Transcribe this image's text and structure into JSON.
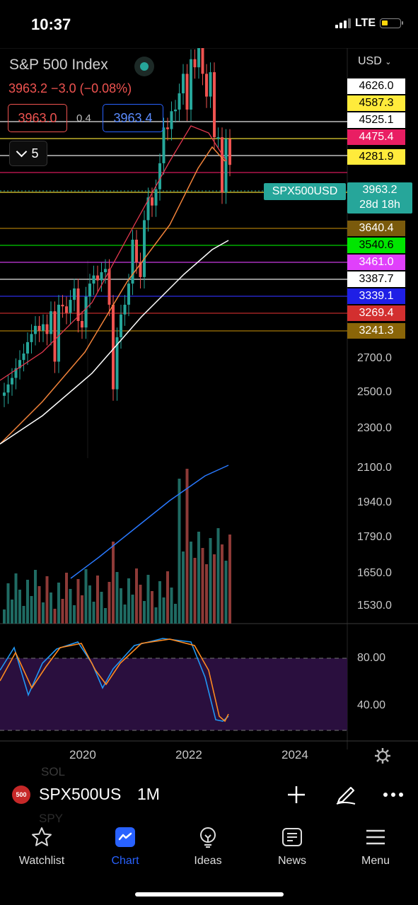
{
  "status_bar": {
    "time": "10:37",
    "network": "LTE"
  },
  "header": {
    "title": "S&P 500 Index",
    "quote": "3963.2  −3.0 (−0.08%)",
    "sell_price": "3963.0",
    "spread": "0.4",
    "buy_price": "3963.4",
    "indicator_count": "5"
  },
  "price_axis": {
    "currency": "USD",
    "ticks": [
      "2700.0",
      "2500.0",
      "2300.0",
      "2100.0",
      "1940.0",
      "1790.0",
      "1650.0",
      "1530.0"
    ],
    "price_levels": [
      {
        "label": "4626.0",
        "bg": "#ffffff",
        "fg": "#000000"
      },
      {
        "label": "4587.3",
        "bg": "#ffeb3b",
        "fg": "#000000"
      },
      {
        "label": "4525.1",
        "bg": "#ffffff",
        "fg": "#000000"
      },
      {
        "label": "4475.4",
        "bg": "#e91e63",
        "fg": "#ffffff"
      },
      {
        "label": "4281.9",
        "bg": "#ffeb3b",
        "fg": "#000000"
      },
      {
        "label": "3640.4",
        "bg": "#7a5a0c",
        "fg": "#ffffff"
      },
      {
        "label": "3540.6",
        "bg": "#00e600",
        "fg": "#000000"
      },
      {
        "label": "3461.0",
        "bg": "#e040fb",
        "fg": "#ffffff"
      },
      {
        "label": "3387.7",
        "bg": "#ffffff",
        "fg": "#000000"
      },
      {
        "label": "3339.1",
        "bg": "#1f1fe6",
        "fg": "#ffffff"
      },
      {
        "label": "3269.4",
        "bg": "#d32f2f",
        "fg": "#ffffff"
      },
      {
        "label": "3241.3",
        "bg": "#8a6508",
        "fg": "#ffffff"
      }
    ],
    "symbol_label": "SPX500USD",
    "current_price": "3963.2",
    "countdown": "28d 18h"
  },
  "oscillator_axis": {
    "ticks": [
      "80.00",
      "40.00"
    ]
  },
  "time_axis": {
    "ticks": [
      "2020",
      "2022",
      "2024"
    ]
  },
  "toolbar": {
    "symbol_icon": "500",
    "symbol": "SPX500USD",
    "interval": "1M",
    "ghost_top": "SOL",
    "ghost_bottom": "SPY"
  },
  "tabs": [
    {
      "label": "Watchlist",
      "icon": "star-icon"
    },
    {
      "label": "Chart",
      "icon": "chart-icon",
      "active": true
    },
    {
      "label": "Ideas",
      "icon": "bulb-icon"
    },
    {
      "label": "News",
      "icon": "news-icon"
    },
    {
      "label": "Menu",
      "icon": "menu-icon"
    }
  ],
  "colors": {
    "up": "#26a69a",
    "down": "#ef5350",
    "accent": "#2962ff",
    "oscillator_band": "#2a0f3e"
  }
}
